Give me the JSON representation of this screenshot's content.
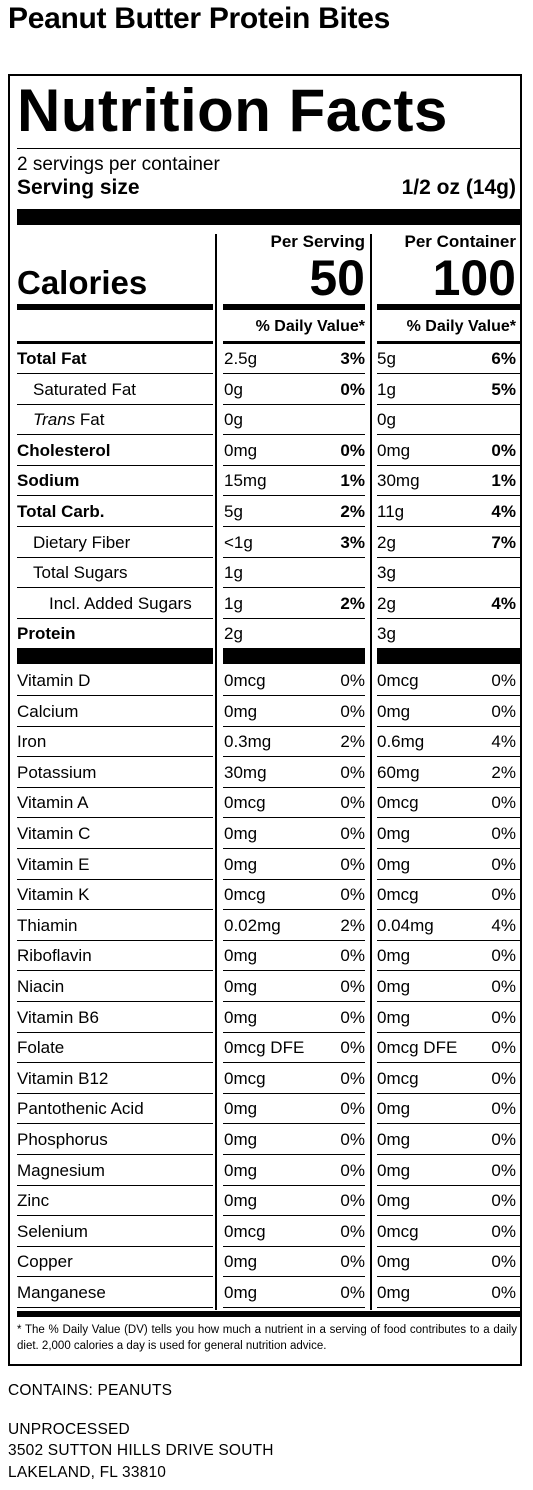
{
  "product_title": "Peanut Butter Protein Bites",
  "label": {
    "heading": "Nutrition Facts",
    "servings_per_container": "2 servings per container",
    "serving_size_label": "Serving size",
    "serving_size_value": "1/2 oz (14g)",
    "col_per_serving": "Per Serving",
    "col_per_container": "Per Container",
    "calories_label": "Calories",
    "calories_serving": "50",
    "calories_container": "100",
    "dv_header": "% Daily Value*",
    "nutrients": [
      {
        "label": "Total Fat",
        "style": "bold",
        "a1": "2.5g",
        "p1": "3%",
        "a2": "5g",
        "p2": "6%"
      },
      {
        "label": "Saturated Fat",
        "style": "indent1",
        "a1": "0g",
        "p1": "0%",
        "a2": "1g",
        "p2": "5%"
      },
      {
        "label_italic": "Trans",
        "label": " Fat",
        "style": "indent1",
        "a1": "0g",
        "p1": "",
        "a2": "0g",
        "p2": ""
      },
      {
        "label": "Cholesterol",
        "style": "bold",
        "a1": "0mg",
        "p1": "0%",
        "a2": "0mg",
        "p2": "0%"
      },
      {
        "label": "Sodium",
        "style": "bold",
        "a1": "15mg",
        "p1": "1%",
        "a2": "30mg",
        "p2": "1%"
      },
      {
        "label": "Total Carb.",
        "style": "bold",
        "a1": "5g",
        "p1": "2%",
        "a2": "11g",
        "p2": "4%"
      },
      {
        "label": "Dietary Fiber",
        "style": "indent1",
        "a1": "<1g",
        "p1": "3%",
        "a2": "2g",
        "p2": "7%"
      },
      {
        "label": "Total Sugars",
        "style": "indent1",
        "a1": "1g",
        "p1": "",
        "a2": "3g",
        "p2": ""
      },
      {
        "label": "Incl. Added Sugars",
        "style": "indent2",
        "a1": "1g",
        "p1": "2%",
        "a2": "2g",
        "p2": "4%"
      },
      {
        "label": "Protein",
        "style": "bold",
        "a1": "2g",
        "p1": "",
        "a2": "3g",
        "p2": ""
      }
    ],
    "vitamins": [
      {
        "label": "Vitamin D",
        "a1": "0mcg",
        "p1": "0%",
        "a2": "0mcg",
        "p2": "0%"
      },
      {
        "label": "Calcium",
        "a1": "0mg",
        "p1": "0%",
        "a2": "0mg",
        "p2": "0%"
      },
      {
        "label": "Iron",
        "a1": "0.3mg",
        "p1": "2%",
        "a2": "0.6mg",
        "p2": "4%"
      },
      {
        "label": "Potassium",
        "a1": "30mg",
        "p1": "0%",
        "a2": "60mg",
        "p2": "2%"
      },
      {
        "label": "Vitamin A",
        "a1": "0mcg",
        "p1": "0%",
        "a2": "0mcg",
        "p2": "0%"
      },
      {
        "label": "Vitamin C",
        "a1": "0mg",
        "p1": "0%",
        "a2": "0mg",
        "p2": "0%"
      },
      {
        "label": "Vitamin E",
        "a1": "0mg",
        "p1": "0%",
        "a2": "0mg",
        "p2": "0%"
      },
      {
        "label": "Vitamin K",
        "a1": "0mcg",
        "p1": "0%",
        "a2": "0mcg",
        "p2": "0%"
      },
      {
        "label": "Thiamin",
        "a1": "0.02mg",
        "p1": "2%",
        "a2": "0.04mg",
        "p2": "4%"
      },
      {
        "label": "Riboflavin",
        "a1": "0mg",
        "p1": "0%",
        "a2": "0mg",
        "p2": "0%"
      },
      {
        "label": "Niacin",
        "a1": "0mg",
        "p1": "0%",
        "a2": "0mg",
        "p2": "0%"
      },
      {
        "label": "Vitamin B6",
        "a1": "0mg",
        "p1": "0%",
        "a2": "0mg",
        "p2": "0%"
      },
      {
        "label": "Folate",
        "a1": "0mcg DFE",
        "p1": "0%",
        "a2": "0mcg DFE",
        "p2": "0%"
      },
      {
        "label": "Vitamin B12",
        "a1": "0mcg",
        "p1": "0%",
        "a2": "0mcg",
        "p2": "0%"
      },
      {
        "label": "Pantothenic Acid",
        "a1": "0mg",
        "p1": "0%",
        "a2": "0mg",
        "p2": "0%"
      },
      {
        "label": "Phosphorus",
        "a1": "0mg",
        "p1": "0%",
        "a2": "0mg",
        "p2": "0%"
      },
      {
        "label": "Magnesium",
        "a1": "0mg",
        "p1": "0%",
        "a2": "0mg",
        "p2": "0%"
      },
      {
        "label": "Zinc",
        "a1": "0mg",
        "p1": "0%",
        "a2": "0mg",
        "p2": "0%"
      },
      {
        "label": "Selenium",
        "a1": "0mcg",
        "p1": "0%",
        "a2": "0mcg",
        "p2": "0%"
      },
      {
        "label": "Copper",
        "a1": "0mg",
        "p1": "0%",
        "a2": "0mg",
        "p2": "0%"
      },
      {
        "label": "Manganese",
        "a1": "0mg",
        "p1": "0%",
        "a2": "0mg",
        "p2": "0%"
      }
    ],
    "footnote": "* The % Daily Value (DV) tells you how much a nutrient in a serving of food contributes to a daily diet. 2,000 calories a day is used for general nutrition advice."
  },
  "allergens": "CONTAINS: PEANUTS",
  "manufacturer": {
    "name": "UNPROCESSED",
    "address1": "3502 SUTTON HILLS DRIVE SOUTH",
    "address2": "LAKELAND, FL 33810"
  }
}
